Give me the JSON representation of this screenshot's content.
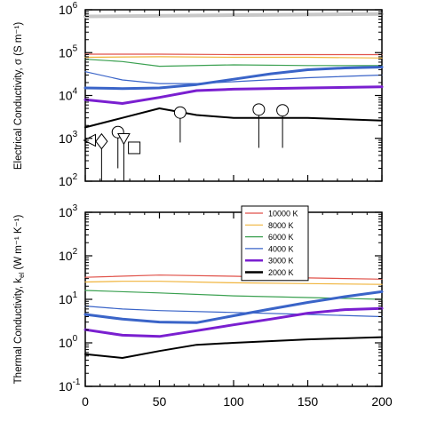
{
  "chart_data": [
    {
      "type": "line",
      "ylabel": "Electrical Conductivity, σ (S m⁻¹)",
      "y_scale": "log",
      "ylim": [
        100,
        1000000
      ],
      "y_ticks": [
        {
          "value": 100,
          "mantissa": "10",
          "exp": "2"
        },
        {
          "value": 1000,
          "mantissa": "10",
          "exp": "3"
        },
        {
          "value": 10000,
          "mantissa": "10",
          "exp": "4"
        },
        {
          "value": 100000,
          "mantissa": "10",
          "exp": "5"
        },
        {
          "value": 1000000,
          "mantissa": "10",
          "exp": "6"
        }
      ],
      "xlim": [
        0,
        200
      ],
      "series": [
        {
          "color": "#c8c8c8",
          "width": 4,
          "x": [
            0,
            200
          ],
          "y": [
            700000,
            800000
          ]
        },
        {
          "name": "10000 K",
          "color": "#e0524a",
          "width": 1.2,
          "x": [
            0,
            50,
            100,
            150,
            200
          ],
          "y": [
            92000,
            92000,
            90000,
            90000,
            90000
          ]
        },
        {
          "name": "8000 K",
          "color": "#f0b43c",
          "width": 1.2,
          "x": [
            0,
            50,
            100,
            150,
            200
          ],
          "y": [
            78000,
            80000,
            78000,
            78000,
            75000
          ]
        },
        {
          "name": "6000 K",
          "color": "#3aa050",
          "width": 1.2,
          "x": [
            0,
            25,
            50,
            100,
            150,
            200
          ],
          "y": [
            70000,
            62000,
            48000,
            52000,
            50000,
            50000
          ]
        },
        {
          "name": "4000 K",
          "color": "#3a64c8",
          "width": 1.2,
          "x": [
            0,
            25,
            50,
            75,
            100,
            150,
            200
          ],
          "y": [
            36000,
            23000,
            19000,
            19000,
            21000,
            26000,
            30000
          ]
        },
        {
          "color": "#3a64c8",
          "width": 3,
          "x": [
            0,
            25,
            50,
            75,
            100,
            125,
            150,
            175,
            200
          ],
          "y": [
            15000,
            14500,
            15000,
            18000,
            24000,
            32000,
            40000,
            44000,
            46000
          ]
        },
        {
          "name": "3000 K",
          "color": "#7a1fd0",
          "width": 3,
          "x": [
            0,
            25,
            50,
            75,
            100,
            150,
            200
          ],
          "y": [
            8000,
            6500,
            9000,
            13000,
            14000,
            15000,
            16000
          ]
        },
        {
          "name": "2000 K",
          "color": "#000000",
          "width": 2,
          "x": [
            0,
            25,
            50,
            75,
            100,
            150,
            200
          ],
          "y": [
            1800,
            3000,
            5000,
            3500,
            3000,
            3000,
            2600
          ]
        }
      ],
      "markers": [
        {
          "shape": "triangle-left",
          "x": 3,
          "y": 900
        },
        {
          "shape": "diamond",
          "x": 11,
          "y": 850,
          "error_low": 100
        },
        {
          "shape": "circle",
          "x": 22,
          "y": 1400,
          "error_low": 200
        },
        {
          "shape": "triangle-down",
          "x": 26,
          "y": 1000,
          "error_low": 100
        },
        {
          "shape": "square",
          "x": 33,
          "y": 600
        },
        {
          "shape": "circle",
          "x": 64,
          "y": 4000,
          "error_low": 800
        },
        {
          "shape": "circle",
          "x": 117,
          "y": 4700,
          "error_low": 600
        },
        {
          "shape": "circle",
          "x": 133,
          "y": 4500,
          "error_low": 600
        }
      ]
    },
    {
      "type": "line",
      "ylabel": "Thermal Conductivity, kel (W m⁻¹ K⁻¹)",
      "ylabel_symbol": "el",
      "y_scale": "log",
      "ylim": [
        0.1,
        1000
      ],
      "y_ticks": [
        {
          "value": 0.1,
          "mantissa": "10",
          "exp": "-1"
        },
        {
          "value": 1,
          "mantissa": "10",
          "exp": "0"
        },
        {
          "value": 10,
          "mantissa": "10",
          "exp": "1"
        },
        {
          "value": 100,
          "mantissa": "10",
          "exp": "2"
        },
        {
          "value": 1000,
          "mantissa": "10",
          "exp": "3"
        }
      ],
      "xlim": [
        0,
        200
      ],
      "x_ticks": [
        0,
        50,
        100,
        150,
        200
      ],
      "legend": {
        "placement": "top-right",
        "entries": [
          {
            "label": "10000 K",
            "color": "#e0524a",
            "width": 1.2
          },
          {
            "label": "8000 K",
            "color": "#f0b43c",
            "width": 1.2
          },
          {
            "label": "6000 K",
            "color": "#3aa050",
            "width": 1.2
          },
          {
            "label": "4000 K",
            "color": "#3a64c8",
            "width": 1.2
          },
          {
            "label": "3000 K",
            "color": "#7a1fd0",
            "width": 2.5
          },
          {
            "label": "2000 K",
            "color": "#000000",
            "width": 2.5
          }
        ]
      },
      "series": [
        {
          "name": "10000 K",
          "color": "#e0524a",
          "width": 1.2,
          "x": [
            0,
            50,
            100,
            150,
            200
          ],
          "y": [
            32,
            36,
            34,
            31,
            29
          ]
        },
        {
          "name": "8000 K",
          "color": "#f0b43c",
          "width": 1.2,
          "x": [
            0,
            25,
            50,
            100,
            150,
            200
          ],
          "y": [
            25,
            26,
            26,
            24,
            23,
            22
          ]
        },
        {
          "name": "6000 K",
          "color": "#3aa050",
          "width": 1.2,
          "x": [
            0,
            50,
            100,
            150,
            200
          ],
          "y": [
            16,
            14,
            12,
            11,
            10
          ]
        },
        {
          "name": "4000 K",
          "color": "#3a64c8",
          "width": 1.2,
          "x": [
            0,
            25,
            50,
            100,
            150,
            200
          ],
          "y": [
            7,
            6,
            5.5,
            5,
            4.5,
            4
          ]
        },
        {
          "color": "#3a64c8",
          "width": 3,
          "x": [
            0,
            25,
            50,
            75,
            100,
            125,
            150,
            175,
            200
          ],
          "y": [
            4.5,
            3.5,
            3.0,
            2.9,
            4.2,
            6.0,
            8.5,
            11.5,
            15
          ]
        },
        {
          "name": "3000 K",
          "color": "#7a1fd0",
          "width": 3,
          "x": [
            0,
            25,
            50,
            75,
            100,
            125,
            150,
            175,
            200
          ],
          "y": [
            2.0,
            1.5,
            1.4,
            1.9,
            2.6,
            3.5,
            4.8,
            5.8,
            6.2
          ]
        },
        {
          "name": "2000 K",
          "color": "#000000",
          "width": 2,
          "x": [
            0,
            25,
            50,
            75,
            100,
            150,
            200
          ],
          "y": [
            0.55,
            0.45,
            0.65,
            0.9,
            1.0,
            1.2,
            1.35
          ]
        }
      ]
    }
  ]
}
